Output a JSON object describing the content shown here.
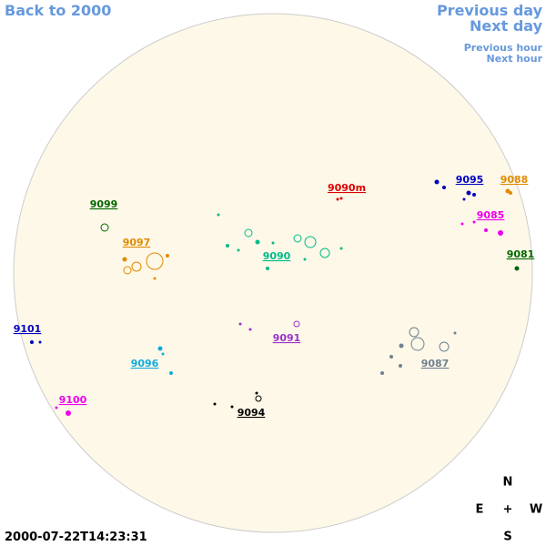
{
  "navigation": {
    "back": "Back to 2000",
    "previous_day": "Previous day",
    "next_day": "Next day",
    "previous_hour": "Previous hour",
    "next_hour": "Next hour"
  },
  "regions": [
    {
      "label": "9088",
      "color": "#e08a00"
    },
    {
      "label": "9095",
      "color": "#0000c0"
    },
    {
      "label": "9090m",
      "color": "#dd0000"
    },
    {
      "label": "9099",
      "color": "#006600"
    },
    {
      "label": "9085",
      "color": "#ee00ee"
    },
    {
      "label": "9097",
      "color": "#e08a00"
    },
    {
      "label": "9090",
      "color": "#00bb88"
    },
    {
      "label": "9081",
      "color": "#006600"
    },
    {
      "label": "9101",
      "color": "#0000c0"
    },
    {
      "label": "9091",
      "color": "#9933cc"
    },
    {
      "label": "9096",
      "color": "#11aadd"
    },
    {
      "label": "9087",
      "color": "#708090"
    },
    {
      "label": "9100",
      "color": "#ee00ee"
    },
    {
      "label": "9094",
      "color": "#000000"
    }
  ],
  "compass": {
    "north": "N",
    "east": "E",
    "center": "+",
    "west": "W",
    "south": "S"
  },
  "timestamp": "2000-07-22T14:23:31"
}
